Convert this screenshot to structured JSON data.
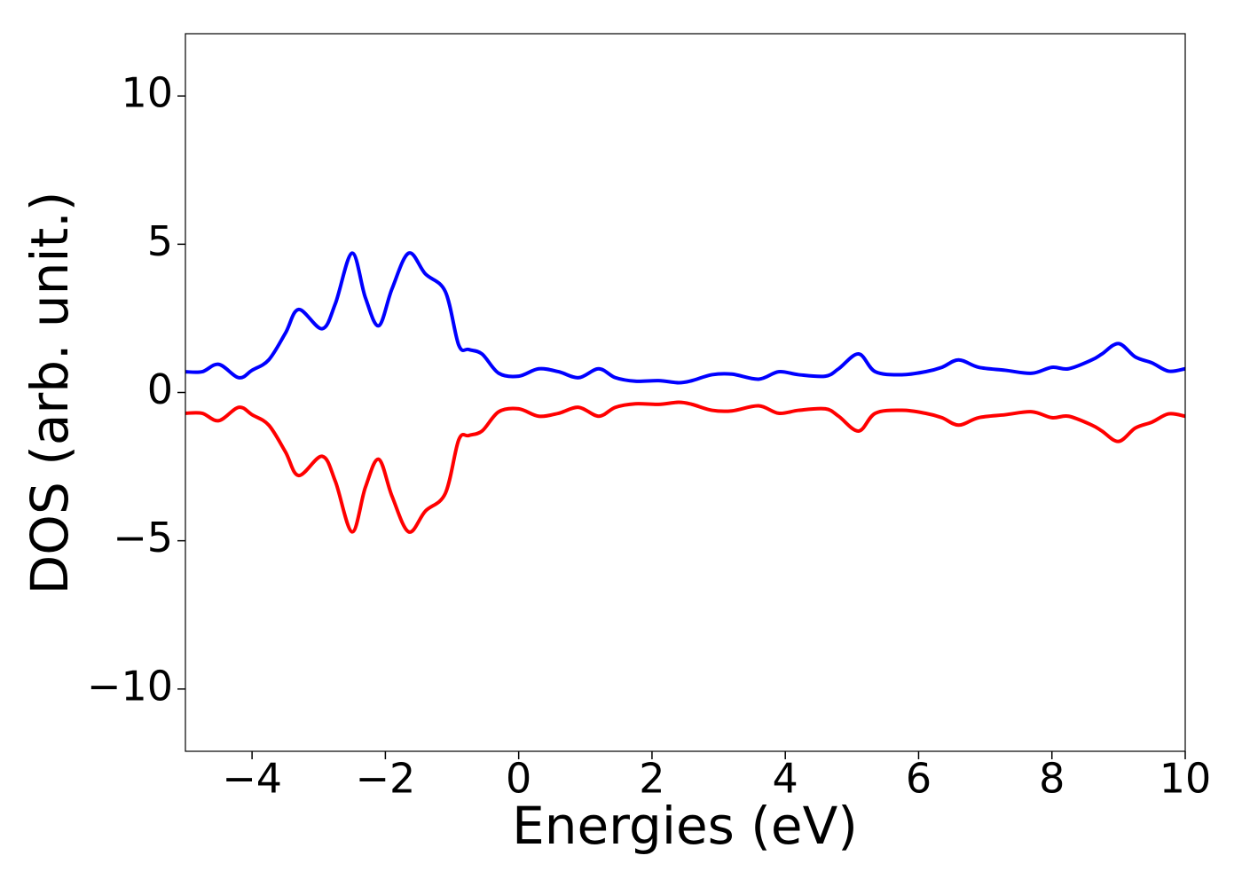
{
  "chart_data": {
    "type": "line",
    "xlabel": "Energies (eV)",
    "ylabel": "DOS (arb. unit.)",
    "x": [
      -5,
      -4.75,
      -4.5,
      -4.2,
      -4,
      -3.75,
      -3.5,
      -3.3,
      -2.95,
      -2.75,
      -2.5,
      -2.3,
      -2.1,
      -1.9,
      -1.65,
      -1.4,
      -1.1,
      -0.9,
      -0.75,
      -0.55,
      -0.3,
      0,
      0.3,
      0.6,
      0.9,
      1.2,
      1.45,
      1.75,
      2.1,
      2.4,
      2.6,
      2.9,
      3.2,
      3.6,
      3.9,
      4.2,
      4.6,
      4.8,
      5.1,
      5.35,
      5.75,
      6.1,
      6.35,
      6.6,
      6.9,
      7.3,
      7.7,
      8.0,
      8.25,
      8.6,
      8.75,
      9.0,
      9.25,
      9.5,
      9.75,
      10
    ],
    "series": [
      {
        "color": "#0000ff",
        "values": [
          0.7,
          0.7,
          0.95,
          0.5,
          0.75,
          1.1,
          2.0,
          2.8,
          2.15,
          3.0,
          4.7,
          3.2,
          2.25,
          3.5,
          4.7,
          4.0,
          3.4,
          1.6,
          1.45,
          1.3,
          0.65,
          0.55,
          0.8,
          0.7,
          0.5,
          0.8,
          0.5,
          0.38,
          0.4,
          0.33,
          0.4,
          0.6,
          0.62,
          0.45,
          0.7,
          0.6,
          0.55,
          0.8,
          1.3,
          0.7,
          0.6,
          0.7,
          0.85,
          1.1,
          0.85,
          0.75,
          0.65,
          0.85,
          0.8,
          1.1,
          1.3,
          1.65,
          1.2,
          1.0,
          0.72,
          0.8
        ]
      },
      {
        "color": "#ff0000",
        "values": [
          -0.7,
          -0.7,
          -0.95,
          -0.5,
          -0.75,
          -1.1,
          -2.0,
          -2.8,
          -2.15,
          -3.0,
          -4.7,
          -3.2,
          -2.25,
          -3.5,
          -4.7,
          -4.0,
          -3.4,
          -1.6,
          -1.45,
          -1.3,
          -0.65,
          -0.55,
          -0.8,
          -0.7,
          -0.5,
          -0.8,
          -0.5,
          -0.38,
          -0.4,
          -0.33,
          -0.4,
          -0.6,
          -0.62,
          -0.45,
          -0.7,
          -0.6,
          -0.55,
          -0.8,
          -1.3,
          -0.7,
          -0.6,
          -0.7,
          -0.85,
          -1.1,
          -0.85,
          -0.75,
          -0.65,
          -0.85,
          -0.8,
          -1.1,
          -1.3,
          -1.65,
          -1.2,
          -1.0,
          -0.72,
          -0.8
        ]
      }
    ],
    "xlim": [
      -5,
      10
    ],
    "ylim": [
      -12.1,
      12.1
    ],
    "xticks": [
      {
        "value": -4,
        "label": "−4"
      },
      {
        "value": -2,
        "label": "−2"
      },
      0,
      2,
      4,
      6,
      8,
      10
    ],
    "yticks": [
      {
        "value": -10,
        "label": "−10"
      },
      {
        "value": -5,
        "label": "−5"
      },
      0,
      5,
      10
    ],
    "grid": false
  }
}
